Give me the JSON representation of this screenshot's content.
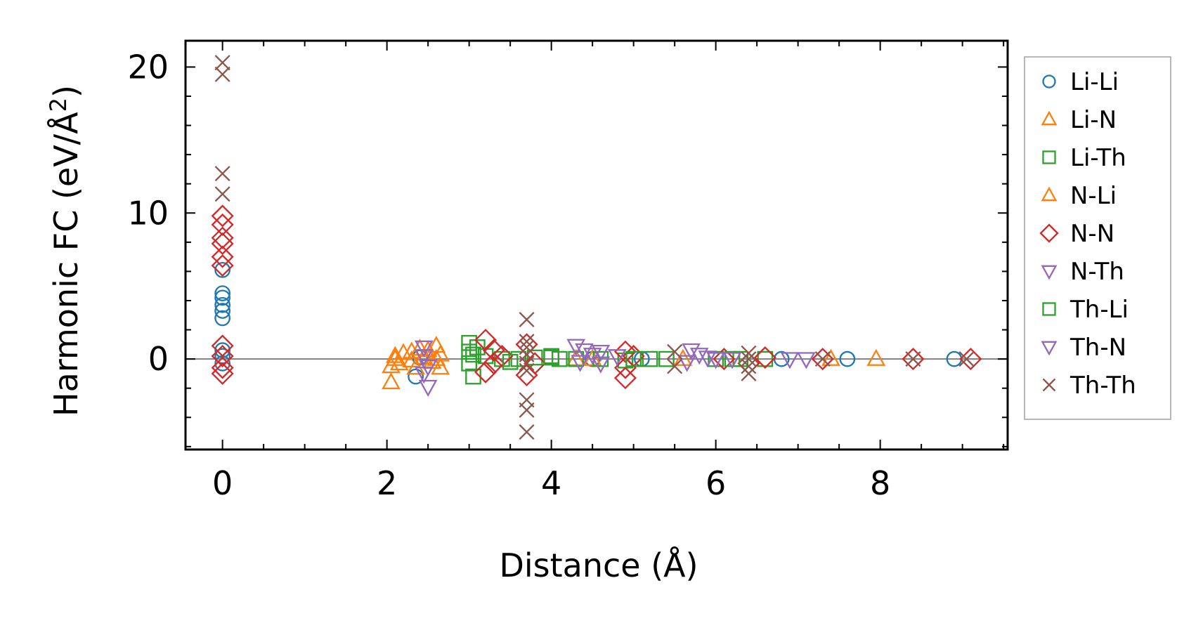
{
  "chart_data": {
    "type": "scatter",
    "xlabel": "Distance (Å)",
    "ylabel_main": "Harmonic FC (eV/Å",
    "ylabel_sup": "2",
    "ylabel_close": ")",
    "xlim": [
      -0.45,
      9.55
    ],
    "ylim": [
      -6.2,
      21.8
    ],
    "xticks": [
      0,
      2,
      4,
      6,
      8
    ],
    "xtick_labels": [
      "0",
      "2",
      "4",
      "6",
      "8"
    ],
    "yticks": [
      0,
      10,
      20
    ],
    "ytick_labels": [
      "0",
      "10",
      "20"
    ],
    "x_minor_step": 0.5,
    "y_minor_step": 2,
    "zero_line": true,
    "grid": false,
    "legend_position": "outside-right",
    "series": [
      {
        "name": "Li-Li",
        "marker": "circle",
        "color": "#1f77b4",
        "x": [
          0,
          0,
          0,
          0,
          0,
          0,
          0,
          0,
          0,
          2.35,
          2.4,
          4.5,
          5.1,
          6.8,
          7.6,
          8.9
        ],
        "y": [
          6.1,
          4.5,
          4.2,
          3.7,
          3.3,
          2.8,
          0.6,
          0.2,
          -0.3,
          -1.2,
          0.1,
          0,
          0,
          0,
          0,
          0
        ]
      },
      {
        "name": "Li-N",
        "marker": "triangle-up",
        "color": "#ff7f0e",
        "x": [
          2.05,
          2.05,
          2.1,
          2.15,
          2.2,
          2.3,
          2.35,
          2.4,
          2.5,
          2.55,
          2.6,
          2.65,
          2.65,
          4.3,
          4.5,
          5.6,
          7.4,
          7.95
        ],
        "y": [
          -1.6,
          -0.5,
          0.2,
          -0.3,
          0.4,
          0.5,
          -0.6,
          0.7,
          0.6,
          -0.2,
          0.9,
          0.3,
          -0.6,
          0,
          0,
          0,
          0,
          0
        ]
      },
      {
        "name": "Li-Th",
        "marker": "square",
        "color": "#2ca02c",
        "x": [
          3.0,
          3.0,
          3.0,
          3.05,
          3.1,
          3.2,
          3.4,
          3.6,
          3.8,
          4.0,
          4.1,
          4.3,
          4.6,
          4.9,
          5.2,
          5.4,
          6.0,
          6.3,
          6.6
        ],
        "y": [
          1.1,
          0.5,
          -0.3,
          -1.2,
          0.8,
          0.2,
          0,
          0,
          0.1,
          0.2,
          0,
          0,
          0,
          -0.1,
          0,
          0,
          0,
          0,
          0
        ]
      },
      {
        "name": "N-Li",
        "marker": "triangle-up",
        "color": "#ff7f0e",
        "x": [
          2.1,
          2.3,
          2.45,
          2.6
        ],
        "y": [
          0,
          -0.1,
          0.1,
          0
        ]
      },
      {
        "name": "N-N",
        "marker": "diamond",
        "color": "#d62728",
        "x": [
          0,
          0,
          0,
          0,
          0,
          0,
          0,
          0,
          0,
          0,
          3.2,
          3.2,
          3.3,
          3.3,
          3.4,
          3.7,
          3.7,
          3.8,
          4.9,
          4.9,
          4.9,
          5.0,
          6.1,
          6.4,
          6.6,
          7.3,
          8.4,
          9.1
        ],
        "y": [
          9.8,
          9.2,
          8.3,
          7.9,
          7.0,
          6.4,
          0.9,
          0.2,
          -0.6,
          -1.0,
          1.3,
          -0.9,
          0.6,
          -0.3,
          0.2,
          1.0,
          -1.1,
          -0.3,
          0.5,
          -1.3,
          -0.6,
          0.2,
          0,
          -0.3,
          0.1,
          0,
          0,
          0
        ]
      },
      {
        "name": "N-Th",
        "marker": "triangle-down",
        "color": "#9467bd",
        "x": [
          2.45,
          2.45,
          2.5,
          2.5,
          4.3,
          4.4,
          4.5,
          4.6,
          4.8,
          5.7,
          5.8,
          6.0,
          6.9,
          7.1
        ],
        "y": [
          0.8,
          0.2,
          -0.5,
          -1.9,
          0.9,
          0.6,
          0.3,
          0.5,
          0.2,
          0.6,
          0.3,
          0,
          0,
          0
        ]
      },
      {
        "name": "Th-Li",
        "marker": "square",
        "color": "#2ca02c",
        "x": [
          3.05,
          3.5,
          4.0,
          5.0,
          6.2
        ],
        "y": [
          0.3,
          -0.2,
          0.1,
          0,
          0
        ]
      },
      {
        "name": "Th-N",
        "marker": "triangle-down",
        "color": "#9467bd",
        "x": [
          2.45,
          4.35,
          4.6,
          5.65,
          5.9,
          6.2
        ],
        "y": [
          -1.0,
          -0.2,
          -0.3,
          -0.2,
          0.1,
          0
        ]
      },
      {
        "name": "Th-Th",
        "marker": "x",
        "color": "#8c564b",
        "x": [
          0,
          0,
          0,
          0,
          3.7,
          3.7,
          3.7,
          3.7,
          3.7,
          3.7,
          3.7,
          3.7,
          3.7,
          5.5,
          5.5,
          6.4,
          6.4,
          6.4,
          6.4,
          7.3,
          8.4,
          9.05
        ],
        "y": [
          20.3,
          19.5,
          12.7,
          11.3,
          2.7,
          1.2,
          0.8,
          0.3,
          -0.3,
          -0.8,
          -2.8,
          -3.5,
          -5.0,
          0.5,
          -0.5,
          0.4,
          0,
          -0.5,
          -1.0,
          0,
          0,
          0
        ]
      }
    ]
  }
}
